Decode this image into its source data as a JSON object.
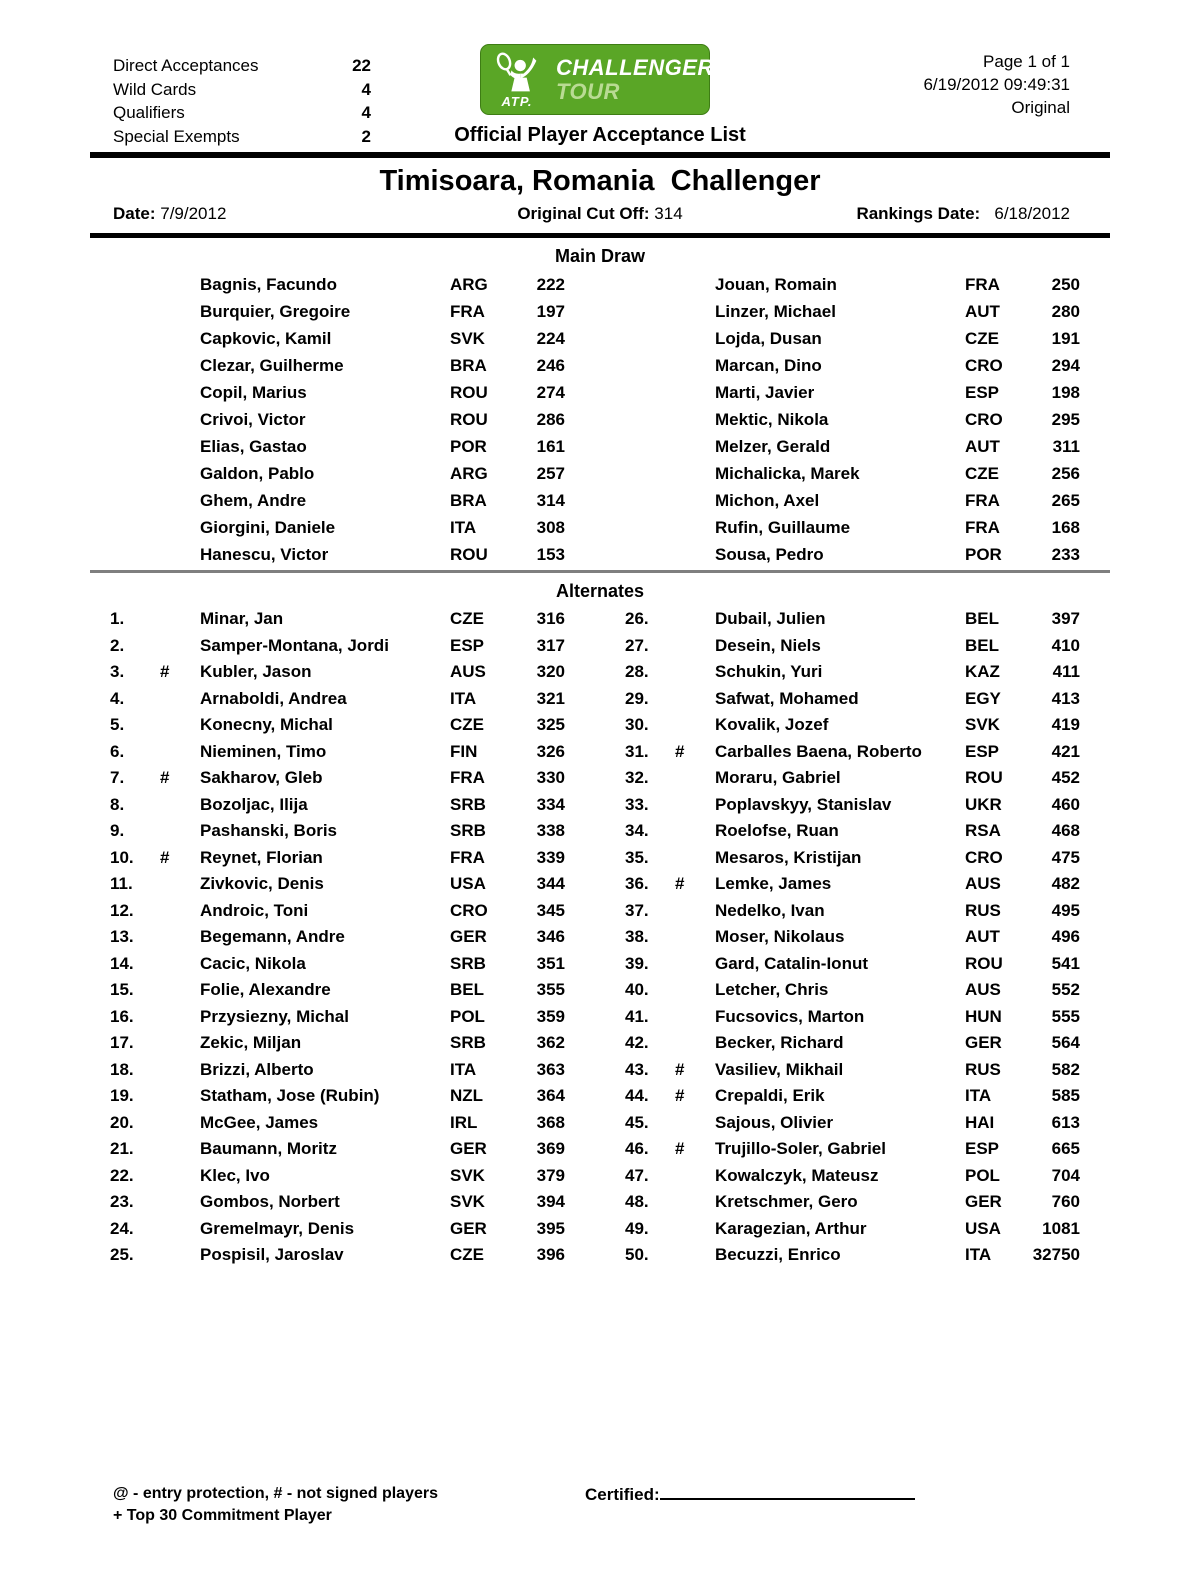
{
  "header": {
    "summary": [
      {
        "label": "Direct Acceptances",
        "value": "22"
      },
      {
        "label": "Wild Cards",
        "value": "4"
      },
      {
        "label": "Qualifiers",
        "value": "4"
      },
      {
        "label": "Special Exempts",
        "value": "2"
      }
    ],
    "logo": {
      "atp_label": "ATP.",
      "line1": "CHALLENGER",
      "line2": "TOUR",
      "green_hex": "#5aa626",
      "tour_text_hex": "#b9db93"
    },
    "doc_title": "Official Player Acceptance List",
    "page_info": "Page 1 of 1",
    "timestamp": "6/19/2012 09:49:31",
    "version": "Original"
  },
  "tournament": {
    "title": "Timisoara, Romania  Challenger",
    "date_label": "Date:",
    "date_value": "7/9/2012",
    "cutoff_label": "Original Cut Off:",
    "cutoff_value": "314",
    "rankings_label": "Rankings Date:",
    "rankings_value": "6/18/2012"
  },
  "main_draw": {
    "title": "Main Draw",
    "left": [
      {
        "name": "Bagnis, Facundo",
        "country": "ARG",
        "rank": "222"
      },
      {
        "name": "Burquier, Gregoire",
        "country": "FRA",
        "rank": "197"
      },
      {
        "name": "Capkovic, Kamil",
        "country": "SVK",
        "rank": "224"
      },
      {
        "name": "Clezar, Guilherme",
        "country": "BRA",
        "rank": "246"
      },
      {
        "name": "Copil, Marius",
        "country": "ROU",
        "rank": "274"
      },
      {
        "name": "Crivoi, Victor",
        "country": "ROU",
        "rank": "286"
      },
      {
        "name": "Elias, Gastao",
        "country": "POR",
        "rank": "161"
      },
      {
        "name": "Galdon, Pablo",
        "country": "ARG",
        "rank": "257"
      },
      {
        "name": "Ghem, Andre",
        "country": "BRA",
        "rank": "314"
      },
      {
        "name": "Giorgini, Daniele",
        "country": "ITA",
        "rank": "308"
      },
      {
        "name": "Hanescu, Victor",
        "country": "ROU",
        "rank": "153"
      }
    ],
    "right": [
      {
        "name": "Jouan, Romain",
        "country": "FRA",
        "rank": "250"
      },
      {
        "name": "Linzer, Michael",
        "country": "AUT",
        "rank": "280"
      },
      {
        "name": "Lojda, Dusan",
        "country": "CZE",
        "rank": "191"
      },
      {
        "name": "Marcan, Dino",
        "country": "CRO",
        "rank": "294"
      },
      {
        "name": "Marti, Javier",
        "country": "ESP",
        "rank": "198"
      },
      {
        "name": "Mektic, Nikola",
        "country": "CRO",
        "rank": "295"
      },
      {
        "name": "Melzer, Gerald",
        "country": "AUT",
        "rank": "311"
      },
      {
        "name": "Michalicka, Marek",
        "country": "CZE",
        "rank": "256"
      },
      {
        "name": "Michon, Axel",
        "country": "FRA",
        "rank": "265"
      },
      {
        "name": "Rufin, Guillaume",
        "country": "FRA",
        "rank": "168"
      },
      {
        "name": "Sousa, Pedro",
        "country": "POR",
        "rank": "233"
      }
    ]
  },
  "alternates": {
    "title": "Alternates",
    "left": [
      {
        "num": "1.",
        "flag": "",
        "name": "Minar, Jan",
        "country": "CZE",
        "rank": "316"
      },
      {
        "num": "2.",
        "flag": "",
        "name": "Samper-Montana, Jordi",
        "country": "ESP",
        "rank": "317"
      },
      {
        "num": "3.",
        "flag": "#",
        "name": "Kubler, Jason",
        "country": "AUS",
        "rank": "320"
      },
      {
        "num": "4.",
        "flag": "",
        "name": "Arnaboldi, Andrea",
        "country": "ITA",
        "rank": "321"
      },
      {
        "num": "5.",
        "flag": "",
        "name": "Konecny, Michal",
        "country": "CZE",
        "rank": "325"
      },
      {
        "num": "6.",
        "flag": "",
        "name": "Nieminen, Timo",
        "country": "FIN",
        "rank": "326"
      },
      {
        "num": "7.",
        "flag": "#",
        "name": "Sakharov, Gleb",
        "country": "FRA",
        "rank": "330"
      },
      {
        "num": "8.",
        "flag": "",
        "name": "Bozoljac, Ilija",
        "country": "SRB",
        "rank": "334"
      },
      {
        "num": "9.",
        "flag": "",
        "name": "Pashanski, Boris",
        "country": "SRB",
        "rank": "338"
      },
      {
        "num": "10.",
        "flag": "#",
        "name": "Reynet, Florian",
        "country": "FRA",
        "rank": "339"
      },
      {
        "num": "11.",
        "flag": "",
        "name": "Zivkovic, Denis",
        "country": "USA",
        "rank": "344"
      },
      {
        "num": "12.",
        "flag": "",
        "name": "Androic, Toni",
        "country": "CRO",
        "rank": "345"
      },
      {
        "num": "13.",
        "flag": "",
        "name": "Begemann, Andre",
        "country": "GER",
        "rank": "346"
      },
      {
        "num": "14.",
        "flag": "",
        "name": "Cacic, Nikola",
        "country": "SRB",
        "rank": "351"
      },
      {
        "num": "15.",
        "flag": "",
        "name": "Folie, Alexandre",
        "country": "BEL",
        "rank": "355"
      },
      {
        "num": "16.",
        "flag": "",
        "name": "Przysiezny, Michal",
        "country": "POL",
        "rank": "359"
      },
      {
        "num": "17.",
        "flag": "",
        "name": "Zekic, Miljan",
        "country": "SRB",
        "rank": "362"
      },
      {
        "num": "18.",
        "flag": "",
        "name": "Brizzi, Alberto",
        "country": "ITA",
        "rank": "363"
      },
      {
        "num": "19.",
        "flag": "",
        "name": "Statham, Jose (Rubin)",
        "country": "NZL",
        "rank": "364"
      },
      {
        "num": "20.",
        "flag": "",
        "name": "McGee, James",
        "country": "IRL",
        "rank": "368"
      },
      {
        "num": "21.",
        "flag": "",
        "name": "Baumann, Moritz",
        "country": "GER",
        "rank": "369"
      },
      {
        "num": "22.",
        "flag": "",
        "name": "Klec, Ivo",
        "country": "SVK",
        "rank": "379"
      },
      {
        "num": "23.",
        "flag": "",
        "name": "Gombos, Norbert",
        "country": "SVK",
        "rank": "394"
      },
      {
        "num": "24.",
        "flag": "",
        "name": "Gremelmayr, Denis",
        "country": "GER",
        "rank": "395"
      },
      {
        "num": "25.",
        "flag": "",
        "name": "Pospisil, Jaroslav",
        "country": "CZE",
        "rank": "396"
      }
    ],
    "right": [
      {
        "num": "26.",
        "flag": "",
        "name": "Dubail, Julien",
        "country": "BEL",
        "rank": "397"
      },
      {
        "num": "27.",
        "flag": "",
        "name": "Desein, Niels",
        "country": "BEL",
        "rank": "410"
      },
      {
        "num": "28.",
        "flag": "",
        "name": "Schukin, Yuri",
        "country": "KAZ",
        "rank": "411"
      },
      {
        "num": "29.",
        "flag": "",
        "name": "Safwat, Mohamed",
        "country": "EGY",
        "rank": "413"
      },
      {
        "num": "30.",
        "flag": "",
        "name": "Kovalik, Jozef",
        "country": "SVK",
        "rank": "419"
      },
      {
        "num": "31.",
        "flag": "#",
        "name": "Carballes Baena, Roberto",
        "country": "ESP",
        "rank": "421"
      },
      {
        "num": "32.",
        "flag": "",
        "name": "Moraru, Gabriel",
        "country": "ROU",
        "rank": "452"
      },
      {
        "num": "33.",
        "flag": "",
        "name": "Poplavskyy, Stanislav",
        "country": "UKR",
        "rank": "460"
      },
      {
        "num": "34.",
        "flag": "",
        "name": "Roelofse, Ruan",
        "country": "RSA",
        "rank": "468"
      },
      {
        "num": "35.",
        "flag": "",
        "name": "Mesaros, Kristijan",
        "country": "CRO",
        "rank": "475"
      },
      {
        "num": "36.",
        "flag": "#",
        "name": "Lemke, James",
        "country": "AUS",
        "rank": "482"
      },
      {
        "num": "37.",
        "flag": "",
        "name": "Nedelko, Ivan",
        "country": "RUS",
        "rank": "495"
      },
      {
        "num": "38.",
        "flag": "",
        "name": "Moser, Nikolaus",
        "country": "AUT",
        "rank": "496"
      },
      {
        "num": "39.",
        "flag": "",
        "name": "Gard, Catalin-Ionut",
        "country": "ROU",
        "rank": "541"
      },
      {
        "num": "40.",
        "flag": "",
        "name": "Letcher, Chris",
        "country": "AUS",
        "rank": "552"
      },
      {
        "num": "41.",
        "flag": "",
        "name": "Fucsovics, Marton",
        "country": "HUN",
        "rank": "555"
      },
      {
        "num": "42.",
        "flag": "",
        "name": "Becker, Richard",
        "country": "GER",
        "rank": "564"
      },
      {
        "num": "43.",
        "flag": "#",
        "name": "Vasiliev, Mikhail",
        "country": "RUS",
        "rank": "582"
      },
      {
        "num": "44.",
        "flag": "#",
        "name": "Crepaldi, Erik",
        "country": "ITA",
        "rank": "585"
      },
      {
        "num": "45.",
        "flag": "",
        "name": "Sajous, Olivier",
        "country": "HAI",
        "rank": "613"
      },
      {
        "num": "46.",
        "flag": "#",
        "name": "Trujillo-Soler, Gabriel",
        "country": "ESP",
        "rank": "665"
      },
      {
        "num": "47.",
        "flag": "",
        "name": "Kowalczyk, Mateusz",
        "country": "POL",
        "rank": "704"
      },
      {
        "num": "48.",
        "flag": "",
        "name": "Kretschmer, Gero",
        "country": "GER",
        "rank": "760"
      },
      {
        "num": "49.",
        "flag": "",
        "name": "Karagezian, Arthur",
        "country": "USA",
        "rank": "1081"
      },
      {
        "num": "50.",
        "flag": "",
        "name": "Becuzzi, Enrico",
        "country": "ITA",
        "rank": "32750"
      }
    ]
  },
  "footer": {
    "legend1": "@ - entry protection, # - not signed players",
    "legend2": "+ Top 30 Commitment Player",
    "certified_label": "Certified:"
  }
}
